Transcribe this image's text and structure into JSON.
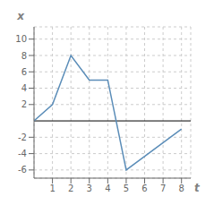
{
  "chart_data": {
    "type": "line",
    "x": [
      0,
      1,
      2,
      3,
      4,
      5,
      8
    ],
    "values": [
      0,
      2,
      8,
      5,
      5,
      -6,
      -1
    ],
    "color": "#5b8db8",
    "xlabel": "t",
    "ylabel": "x",
    "xlim": [
      0,
      8.5
    ],
    "ylim": [
      -7,
      11.5
    ],
    "xticks": [
      1,
      2,
      3,
      4,
      5,
      6,
      7,
      8
    ],
    "yticks": [
      -6,
      -4,
      -2,
      2,
      4,
      6,
      8,
      10
    ],
    "grid": true
  }
}
